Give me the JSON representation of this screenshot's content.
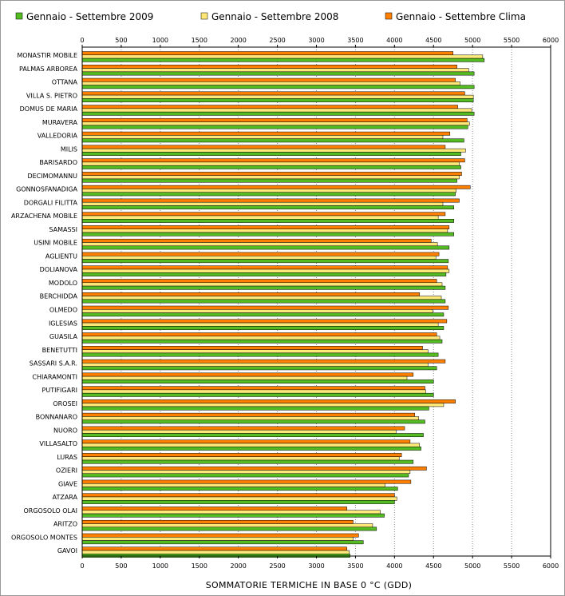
{
  "chart_data": {
    "type": "bar",
    "orientation": "horizontal",
    "title": "",
    "xlabel": "SOMMATORIE TERMICHE IN BASE 0 °C (GDD)",
    "ylabel": "",
    "xlim": [
      0,
      6000
    ],
    "xticks": [
      "0",
      "500",
      "1000",
      "1500",
      "2000",
      "2500",
      "3000",
      "3500",
      "4000",
      "4500",
      "5000",
      "5500",
      "6000"
    ],
    "grid": "vertical dotted",
    "legend_position": "top",
    "categories": [
      "MONASTIR MOBILE",
      "PALMAS ARBOREA",
      "OTTANA",
      "VILLA S. PIETRO",
      "DOMUS DE MARIA",
      "MURAVERA",
      "VALLEDORIA",
      "MILIS",
      "BARISARDO",
      "DECIMOMANNU",
      "GONNOSFANADIGA",
      "DORGALI FILITTA",
      "ARZACHENA MOBILE",
      "SAMASSI",
      "USINI MOBILE",
      "AGLIENTU",
      "DOLIANOVA",
      "MODOLO",
      "BERCHIDDA",
      "OLMEDO",
      "IGLESIAS",
      "GUASILA",
      "BENETUTTI",
      "SASSARI S.A.R.",
      "CHIARAMONTI",
      "PUTIFIGARI",
      "OROSEI",
      "BONNANARO",
      "NUORO",
      "VILLASALTO",
      "LURAS",
      "OZIERI",
      "GIAVE",
      "ATZARA",
      "ORGOSOLO OLAI",
      "ARITZO",
      "ORGOSOLO MONTES",
      "GAVOI"
    ],
    "series": [
      {
        "name": "Gennaio - Settembre Clima",
        "color": "#ff8000",
        "values": [
          4750,
          4800,
          4780,
          4900,
          4810,
          4930,
          4710,
          4650,
          4900,
          4860,
          4970,
          4830,
          4650,
          4700,
          4470,
          4570,
          4680,
          4540,
          4320,
          4690,
          4670,
          4540,
          4360,
          4650,
          4240,
          4390,
          4780,
          4260,
          4130,
          4200,
          4090,
          4410,
          4210,
          4000,
          3390,
          3470,
          3540,
          3390
        ]
      },
      {
        "name": "Gennaio - Settembre 2008",
        "color": "#ffe87a",
        "values": [
          5130,
          4950,
          4840,
          5010,
          4990,
          4960,
          4620,
          4910,
          4830,
          4830,
          4790,
          4620,
          4560,
          4680,
          4550,
          4530,
          4700,
          4610,
          4600,
          4490,
          4560,
          4580,
          4430,
          4430,
          4160,
          4400,
          4630,
          4310,
          4020,
          4320,
          4060,
          4200,
          3880,
          4030,
          3820,
          3720,
          3470,
          3420
        ]
      },
      {
        "name": "Gennaio - Settembre 2009",
        "color": "#55bb22",
        "values": [
          5150,
          5020,
          5020,
          5010,
          5020,
          4940,
          4890,
          4850,
          4850,
          4800,
          4780,
          4760,
          4760,
          4760,
          4700,
          4690,
          4660,
          4650,
          4650,
          4630,
          4630,
          4610,
          4560,
          4540,
          4500,
          4500,
          4440,
          4390,
          4370,
          4340,
          4240,
          4180,
          4040,
          4000,
          3870,
          3770,
          3600,
          3430
        ]
      }
    ]
  }
}
